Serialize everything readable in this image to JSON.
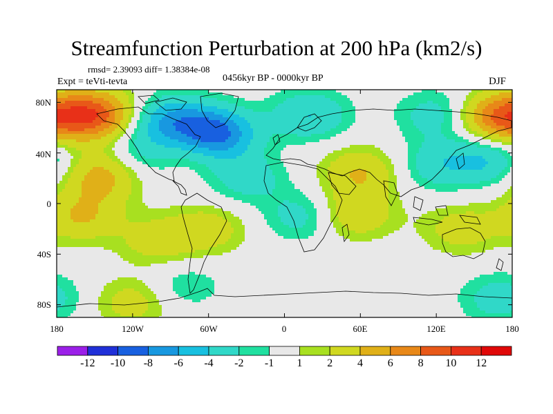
{
  "title": "Streamfunction Perturbation at 200 hPa (km2/s)",
  "stats": "rmsd= 2.39093  diff= 1.38384e-08",
  "experiment": "Expt = teVti-tevta",
  "period": "0456kyr BP - 0000kyr BP",
  "season": "DJF",
  "chart_data": {
    "type": "heatmap",
    "projection": "cylindrical equidistant",
    "variable": "streamfunction perturbation",
    "units": "km2/s",
    "level": "200 hPa",
    "xlim": [
      -180,
      180
    ],
    "ylim": [
      -90,
      90
    ],
    "x_ticks": [
      "180",
      "120W",
      "60W",
      "0",
      "60E",
      "120E",
      "180"
    ],
    "y_ticks": [
      "80N",
      "40N",
      "0",
      "40S",
      "80S"
    ],
    "colorbar": {
      "labels": [
        "-12",
        "-10",
        "-8",
        "-6",
        "-4",
        "-2",
        "-1",
        "1",
        "2",
        "4",
        "6",
        "8",
        "10",
        "12"
      ],
      "levels": [
        -12,
        -10,
        -8,
        -6,
        -4,
        -2,
        -1,
        1,
        2,
        4,
        6,
        8,
        10,
        12
      ],
      "colors": [
        "#9b1fe8",
        "#2030d8",
        "#1860e0",
        "#1898e0",
        "#18c0e0",
        "#30d8c8",
        "#20e0a0",
        "#e8e8e8",
        "#a8e020",
        "#d0d820",
        "#e0b018",
        "#e88818",
        "#e85818",
        "#e83018",
        "#e00808"
      ]
    },
    "anomaly_centers": [
      {
        "lon": -150,
        "lat": 70,
        "value": 9
      },
      {
        "lon": -55,
        "lat": 55,
        "value": -9
      },
      {
        "lon": -90,
        "lat": 65,
        "value": -6
      },
      {
        "lon": 20,
        "lat": 70,
        "value": -4
      },
      {
        "lon": 120,
        "lat": 70,
        "value": -3
      },
      {
        "lon": 170,
        "lat": 68,
        "value": 8
      },
      {
        "lon": -145,
        "lat": 22,
        "value": 5
      },
      {
        "lon": -160,
        "lat": -10,
        "value": 4
      },
      {
        "lon": -110,
        "lat": 40,
        "value": -3
      },
      {
        "lon": 160,
        "lat": 35,
        "value": -4
      },
      {
        "lon": 120,
        "lat": 30,
        "value": -3
      },
      {
        "lon": -30,
        "lat": 20,
        "value": -3
      },
      {
        "lon": 15,
        "lat": -10,
        "value": -3
      },
      {
        "lon": -80,
        "lat": 45,
        "value": 2
      },
      {
        "lon": 60,
        "lat": 25,
        "value": 4
      },
      {
        "lon": 55,
        "lat": -8,
        "value": 4
      },
      {
        "lon": -100,
        "lat": -30,
        "value": 3
      },
      {
        "lon": -60,
        "lat": -20,
        "value": 3
      },
      {
        "lon": 140,
        "lat": -20,
        "value": 3
      },
      {
        "lon": -80,
        "lat": -65,
        "value": -2
      },
      {
        "lon": -120,
        "lat": -78,
        "value": 3
      },
      {
        "lon": 170,
        "lat": -75,
        "value": -3
      }
    ]
  }
}
